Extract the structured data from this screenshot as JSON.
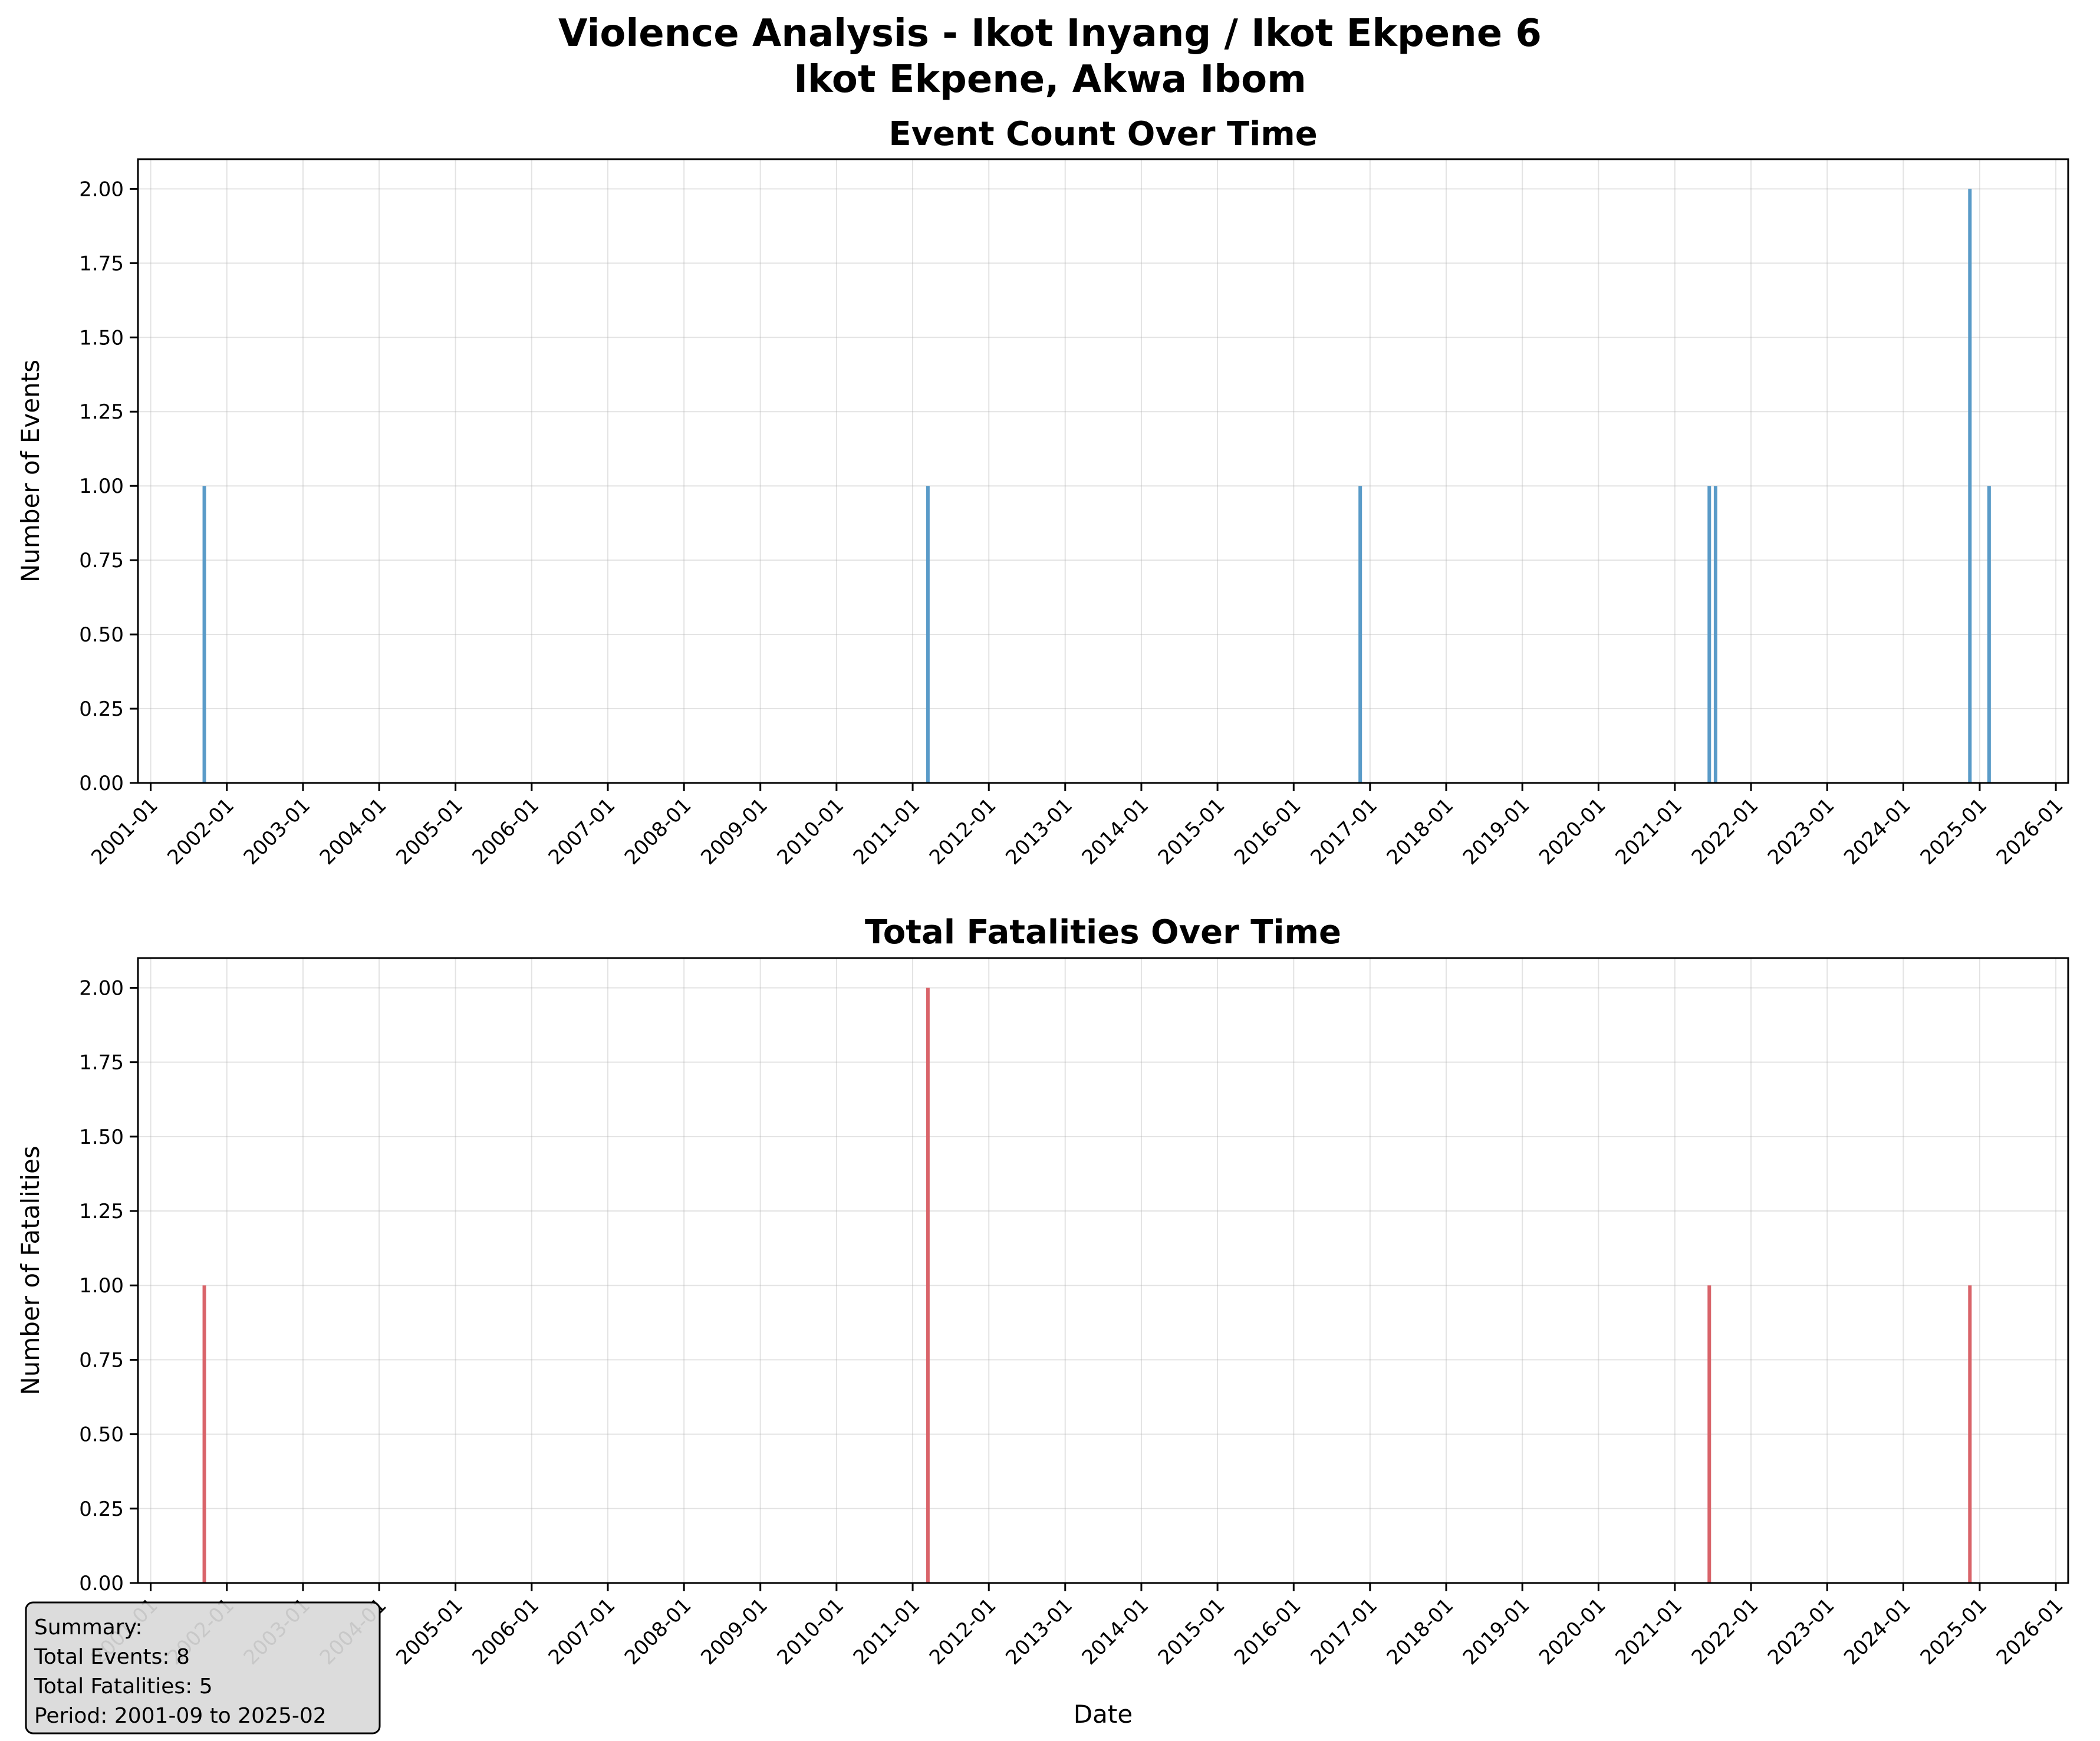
{
  "figure": {
    "title_line1": "Violence Analysis - Ikot Inyang / Ikot Ekpene 6",
    "title_line2": "Ikot Ekpene, Akwa Ibom"
  },
  "summary": {
    "heading": "Summary:",
    "total_events": "Total Events: 8",
    "total_fatalities": "Total Fatalities: 5",
    "period": "Period: 2001-09 to 2025-02"
  },
  "chart_data": [
    {
      "type": "bar",
      "title": "Event Count Over Time",
      "xlabel": "",
      "ylabel": "Number of Events",
      "x_axis": "date",
      "xlim": [
        "2000-11-01",
        "2026-03-01"
      ],
      "ylim": [
        0,
        2.1
      ],
      "grid": true,
      "color": "#5a9bc8",
      "x_ticks": [
        "2001-01",
        "2002-01",
        "2003-01",
        "2004-01",
        "2005-01",
        "2006-01",
        "2007-01",
        "2008-01",
        "2009-01",
        "2010-01",
        "2011-01",
        "2012-01",
        "2013-01",
        "2014-01",
        "2015-01",
        "2016-01",
        "2017-01",
        "2018-01",
        "2019-01",
        "2020-01",
        "2021-01",
        "2022-01",
        "2023-01",
        "2024-01",
        "2025-01",
        "2026-01"
      ],
      "y_ticks": [
        "0.00",
        "0.25",
        "0.50",
        "0.75",
        "1.00",
        "1.25",
        "1.50",
        "1.75",
        "2.00"
      ],
      "points": [
        {
          "date": "2001-09",
          "value": 1
        },
        {
          "date": "2011-03",
          "value": 1
        },
        {
          "date": "2016-11",
          "value": 1
        },
        {
          "date": "2021-06",
          "value": 1
        },
        {
          "date": "2021-07",
          "value": 1
        },
        {
          "date": "2024-11",
          "value": 2
        },
        {
          "date": "2025-02",
          "value": 1
        }
      ]
    },
    {
      "type": "bar",
      "title": "Total Fatalities Over Time",
      "xlabel": "Date",
      "ylabel": "Number of Fatalities",
      "x_axis": "date",
      "xlim": [
        "2000-11-01",
        "2026-03-01"
      ],
      "ylim": [
        0,
        2.1
      ],
      "grid": true,
      "color": "#d9646a",
      "x_ticks": [
        "2001-01",
        "2002-01",
        "2003-01",
        "2004-01",
        "2005-01",
        "2006-01",
        "2007-01",
        "2008-01",
        "2009-01",
        "2010-01",
        "2011-01",
        "2012-01",
        "2013-01",
        "2014-01",
        "2015-01",
        "2016-01",
        "2017-01",
        "2018-01",
        "2019-01",
        "2020-01",
        "2021-01",
        "2022-01",
        "2023-01",
        "2024-01",
        "2025-01",
        "2026-01"
      ],
      "y_ticks": [
        "0.00",
        "0.25",
        "0.50",
        "0.75",
        "1.00",
        "1.25",
        "1.50",
        "1.75",
        "2.00"
      ],
      "points": [
        {
          "date": "2001-09",
          "value": 1
        },
        {
          "date": "2011-03",
          "value": 2
        },
        {
          "date": "2021-06",
          "value": 1
        },
        {
          "date": "2024-11",
          "value": 1
        }
      ]
    }
  ]
}
